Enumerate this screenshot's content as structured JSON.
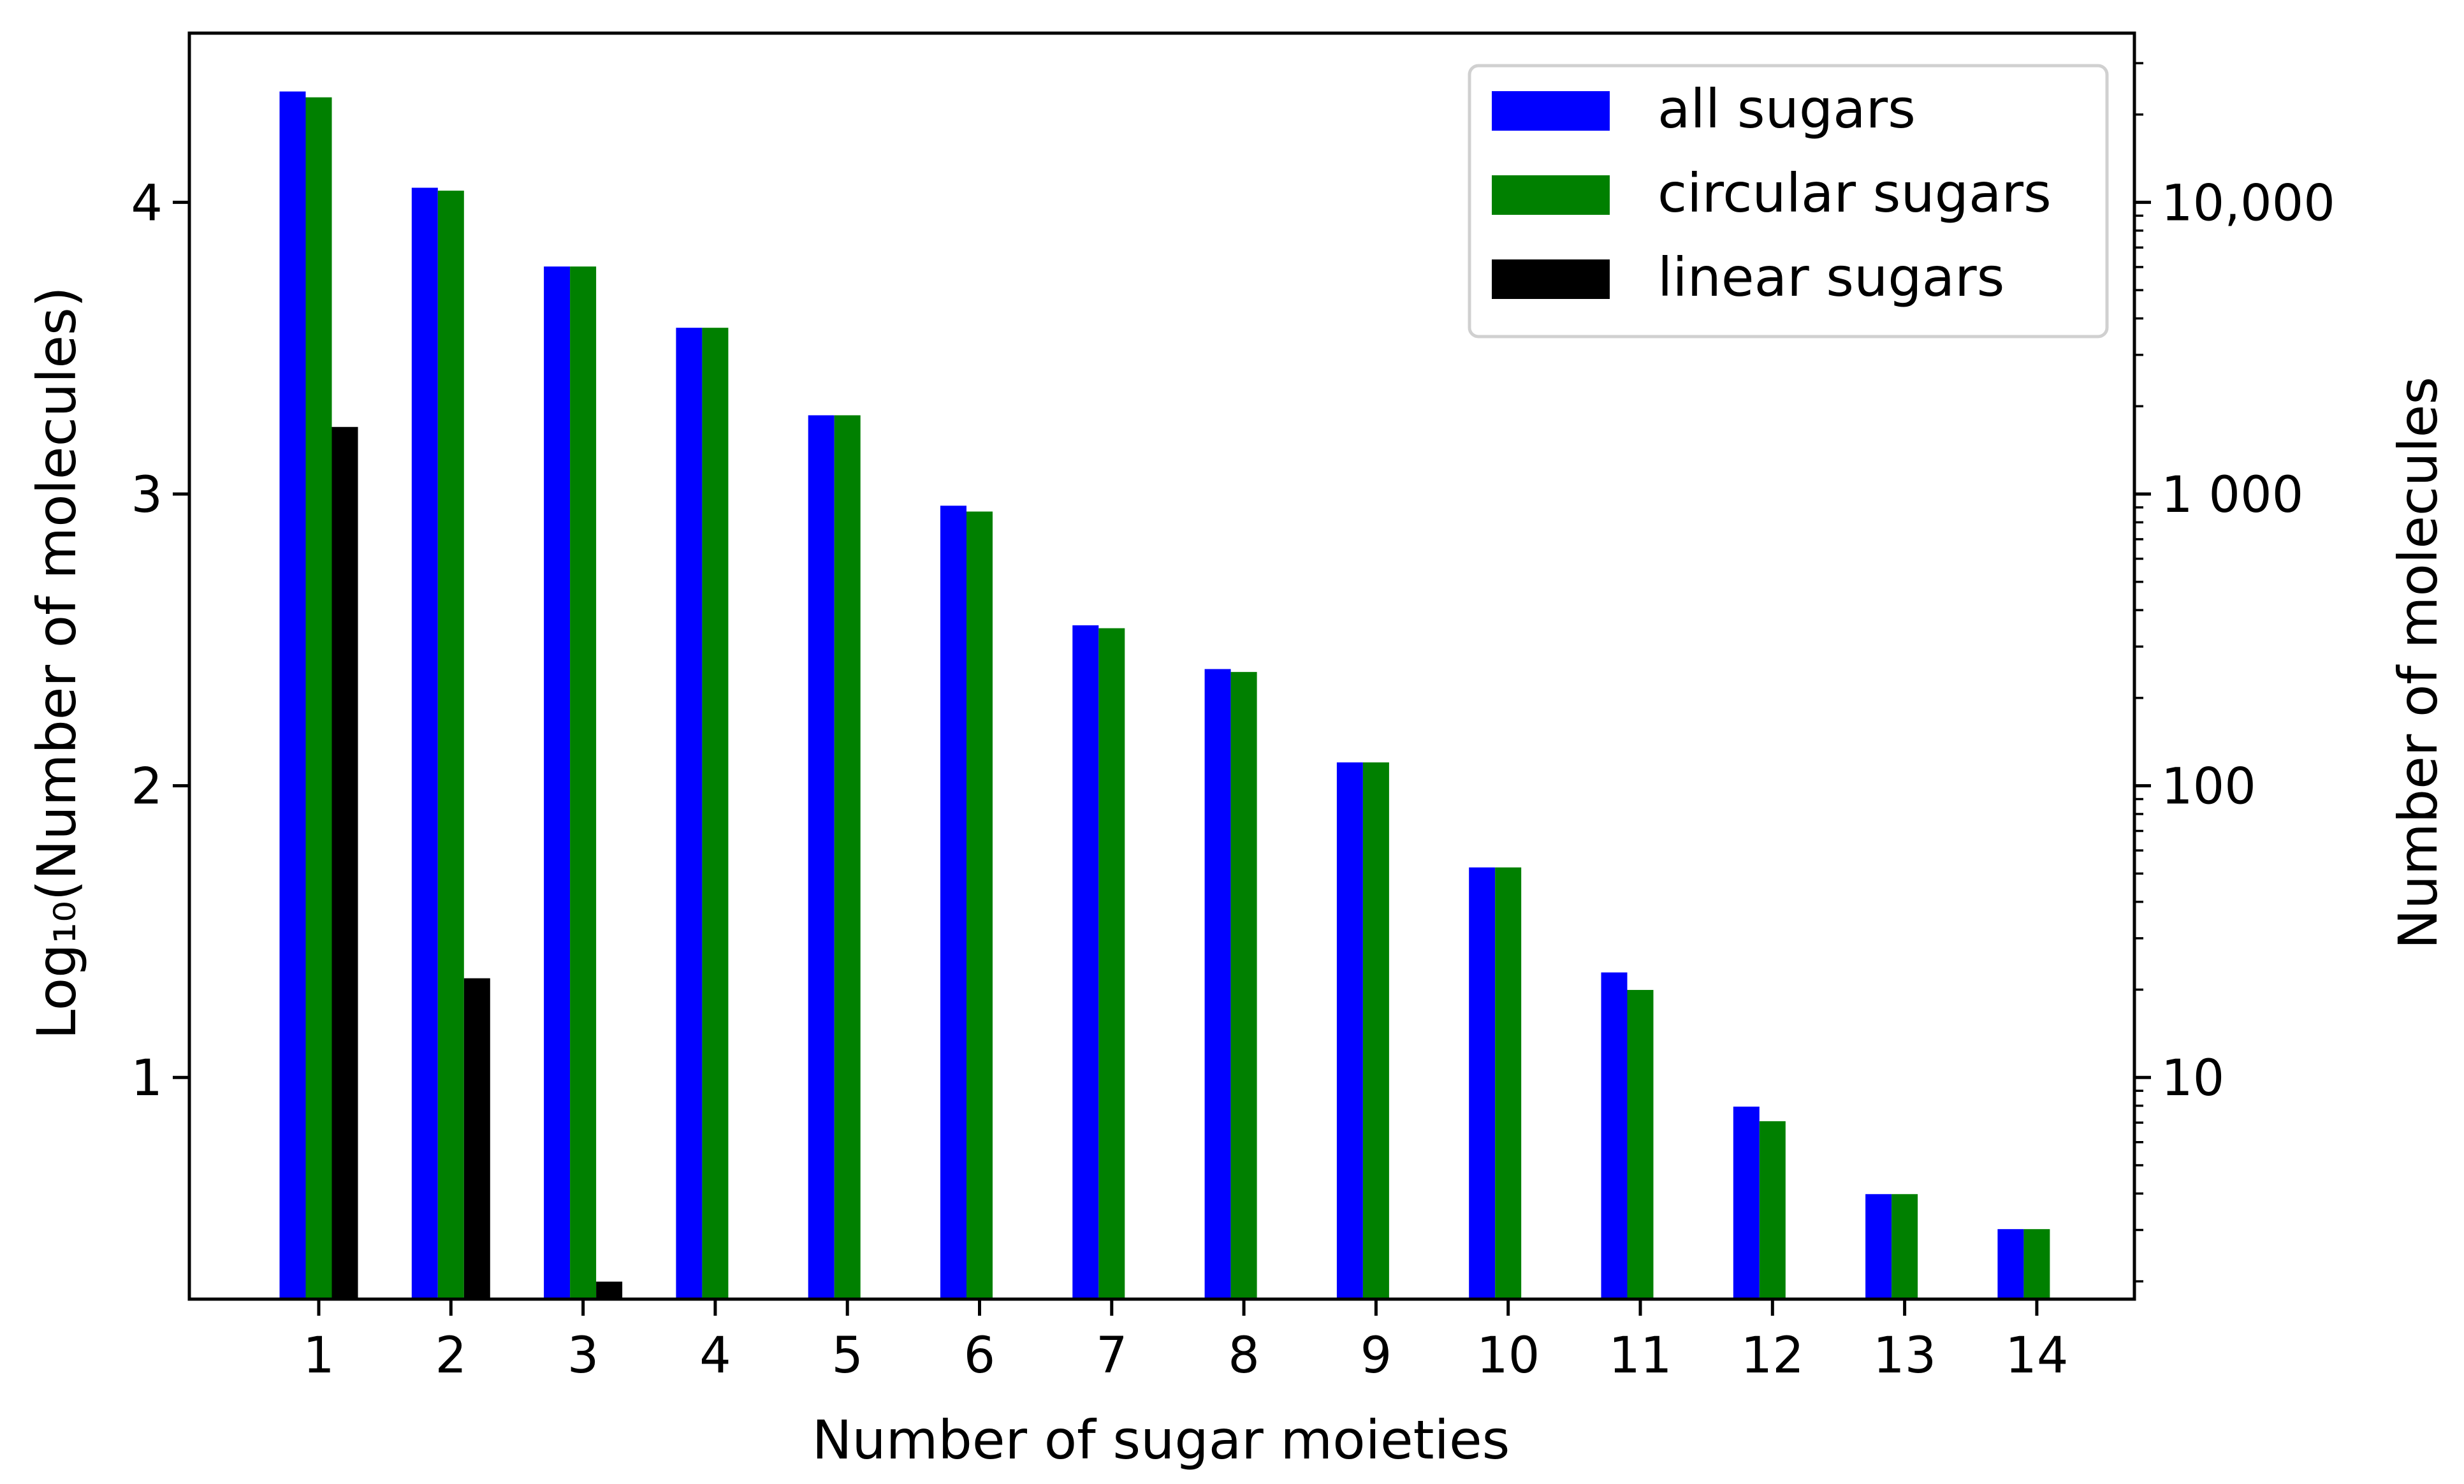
{
  "chart_data": {
    "type": "bar",
    "xlabel": "Number of sugar moieties",
    "ylabel": "Log₁₀(Number of molecules)",
    "ylabel_right": "Number of molecules",
    "categories": [
      "1",
      "2",
      "3",
      "4",
      "5",
      "6",
      "7",
      "8",
      "9",
      "10",
      "11",
      "12",
      "13",
      "14"
    ],
    "ylim": [
      0.24,
      4.58
    ],
    "yticks": [
      1,
      2,
      3,
      4
    ],
    "yticks_right": [
      {
        "value": 1,
        "label": "10"
      },
      {
        "value": 2,
        "label": "100"
      },
      {
        "value": 3,
        "label": "1 000"
      },
      {
        "value": 4,
        "label": "10,000"
      }
    ],
    "grid": false,
    "legend_position": "top-right",
    "series": [
      {
        "name": "all sugars",
        "color": "#0000ff",
        "values": [
          4.38,
          4.05,
          3.78,
          3.57,
          3.27,
          2.96,
          2.55,
          2.4,
          2.08,
          1.72,
          1.36,
          0.9,
          0.6,
          0.48
        ]
      },
      {
        "name": "circular sugars",
        "color": "#008000",
        "values": [
          4.36,
          4.04,
          3.78,
          3.57,
          3.27,
          2.94,
          2.54,
          2.39,
          2.08,
          1.72,
          1.3,
          0.85,
          0.6,
          0.48
        ]
      },
      {
        "name": "linear sugars",
        "color": "#000000",
        "values": [
          3.23,
          1.34,
          0.3,
          null,
          null,
          null,
          null,
          null,
          null,
          null,
          null,
          null,
          null,
          null
        ]
      }
    ]
  }
}
